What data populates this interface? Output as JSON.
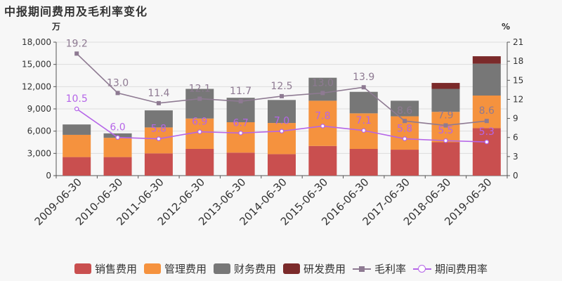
{
  "title": "中报期间费用及毛利率变化",
  "chart_data": {
    "type": "bar",
    "stacked": true,
    "categories": [
      "2009-06-30",
      "2010-06-30",
      "2011-06-30",
      "2012-06-30",
      "2013-06-30",
      "2014-06-30",
      "2015-06-30",
      "2016-06-30",
      "2017-06-30",
      "2018-06-30",
      "2019-06-30"
    ],
    "left_unit": "万",
    "right_unit": "%",
    "ylim_left": [
      0,
      18000
    ],
    "yticks_left": [
      0,
      3000,
      6000,
      9000,
      12000,
      15000,
      18000
    ],
    "ytick_labels_left": [
      "0",
      "3,000",
      "6,000",
      "9,000",
      "12,000",
      "15,000",
      "18,000"
    ],
    "ylim_right": [
      0,
      21
    ],
    "yticks_right": [
      0,
      3,
      6,
      9,
      12,
      15,
      18,
      21
    ],
    "series": [
      {
        "name": "销售费用",
        "kind": "bar",
        "color": "#c94f4f",
        "values": [
          2500,
          2500,
          3000,
          3600,
          3100,
          2900,
          4000,
          3600,
          3500,
          4500,
          6400
        ]
      },
      {
        "name": "管理费用",
        "kind": "bar",
        "color": "#f5923e",
        "values": [
          3000,
          2600,
          3500,
          4100,
          4100,
          4200,
          6100,
          4800,
          4500,
          4100,
          4400
        ]
      },
      {
        "name": "财务费用",
        "kind": "bar",
        "color": "#777777",
        "values": [
          1400,
          600,
          2300,
          4000,
          3300,
          3100,
          3100,
          2900,
          2100,
          3100,
          4300
        ]
      },
      {
        "name": "研发费用",
        "kind": "bar",
        "color": "#7b2a2a",
        "values": [
          0,
          0,
          0,
          0,
          0,
          0,
          0,
          0,
          0,
          800,
          1000
        ]
      },
      {
        "name": "毛利率",
        "kind": "line",
        "axis": "right",
        "color": "#8e7a92",
        "values": [
          19.2,
          13.0,
          11.4,
          12.1,
          11.7,
          12.5,
          13.0,
          13.9,
          8.6,
          7.9,
          8.6
        ]
      },
      {
        "name": "期间费用率",
        "kind": "line",
        "axis": "right",
        "color": "#b565e8",
        "values": [
          10.5,
          6.0,
          5.8,
          6.9,
          6.7,
          7.0,
          7.8,
          7.1,
          5.8,
          5.5,
          5.3
        ]
      }
    ],
    "line_labels": {
      "毛利率": [
        "19.2",
        "13.0",
        "11.4",
        "12.1",
        "11.7",
        "12.5",
        "13.0",
        "13.9",
        "8.6",
        "7.9",
        "8.6"
      ],
      "期间费用率": [
        "10.5",
        "6.0",
        "5.8",
        "6.9",
        "6.7",
        "7.0",
        "7.8",
        "7.1",
        "5.8",
        "5.5",
        "5.3"
      ]
    },
    "legend_position": "bottom"
  }
}
